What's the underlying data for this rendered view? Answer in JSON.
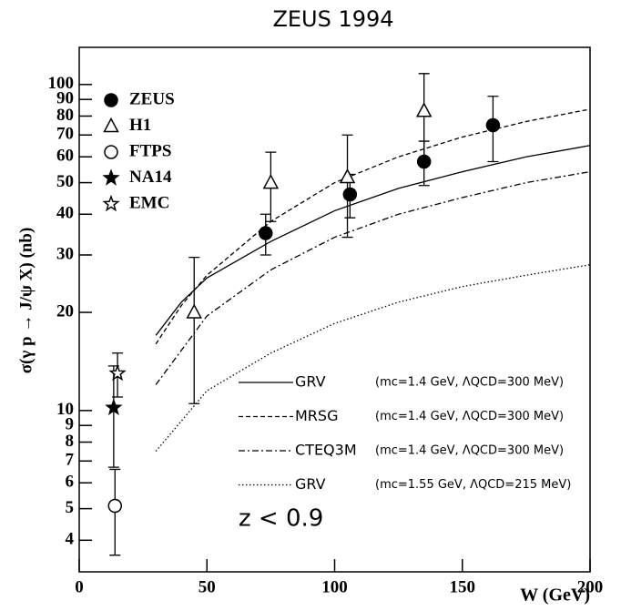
{
  "chart_data": {
    "type": "scatter",
    "title": "ZEUS 1994",
    "x_label": "W (GeV)",
    "y_label": "σ(γ p → J/ψ X)  (nb)",
    "annotation": "z < 0.9",
    "xlim": [
      0,
      200
    ],
    "xticks": [
      0,
      50,
      100,
      150,
      200
    ],
    "ylim": [
      3.2,
      130
    ],
    "log_y": true,
    "yticks": [
      4,
      5,
      6,
      7,
      8,
      9,
      10,
      20,
      30,
      40,
      50,
      60,
      70,
      80,
      90,
      100
    ],
    "color": "#000000",
    "series": [
      {
        "name": "ZEUS",
        "marker": "filled-circle",
        "x": [
          73,
          106,
          135,
          162
        ],
        "values": [
          35,
          46,
          58,
          75
        ],
        "errors": [
          5,
          7,
          9,
          17
        ]
      },
      {
        "name": "H1",
        "marker": "open-triangle",
        "x": [
          45,
          75,
          105,
          135
        ],
        "values": [
          20,
          50,
          52,
          83
        ],
        "errors": [
          9.5,
          12,
          18,
          25
        ]
      },
      {
        "name": "FTPS",
        "marker": "open-circle",
        "x": [
          14
        ],
        "values": [
          5.1
        ],
        "errors": [
          1.5
        ]
      },
      {
        "name": "NA14",
        "marker": "filled-star",
        "x": [
          13.5
        ],
        "values": [
          10.2
        ],
        "errors": [
          3.5
        ]
      },
      {
        "name": "EMC",
        "marker": "open-star",
        "x": [
          15
        ],
        "values": [
          13
        ],
        "errors": [
          2
        ]
      }
    ],
    "curves": [
      {
        "name": "GRV",
        "params": "(mc=1.4 GeV, ΛQCD=300 MeV)",
        "dash": "none",
        "x": [
          30,
          40,
          50,
          75,
          100,
          125,
          150,
          175,
          200
        ],
        "values": [
          17,
          21.5,
          25.5,
          33,
          41,
          48,
          54,
          60,
          65
        ]
      },
      {
        "name": "MRSG",
        "params": "(mc=1.4 GeV, ΛQCD=300 MeV)",
        "dash": "5 3",
        "x": [
          30,
          40,
          50,
          75,
          100,
          125,
          150,
          175,
          200
        ],
        "values": [
          16,
          21,
          26,
          38,
          50,
          60,
          69,
          77,
          84
        ]
      },
      {
        "name": "CTEQ3M",
        "params": "(mc=1.4 GeV, ΛQCD=300 MeV)",
        "dash": "7 3 2 3",
        "x": [
          30,
          50,
          75,
          100,
          125,
          150,
          175,
          200
        ],
        "values": [
          12,
          19.5,
          27,
          34,
          40,
          45,
          50,
          54
        ]
      },
      {
        "name": "GRV",
        "params": "(mc=1.55 GeV, ΛQCD=215 MeV)",
        "dash": "1.5 2.5",
        "x": [
          30,
          50,
          75,
          100,
          125,
          150,
          175,
          200
        ],
        "values": [
          7.5,
          11.5,
          15,
          18.5,
          21.5,
          24,
          26,
          28
        ]
      }
    ]
  }
}
